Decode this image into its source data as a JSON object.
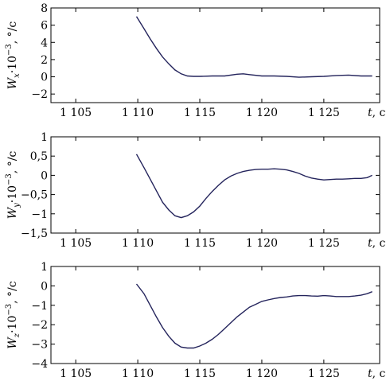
{
  "chart_data": [
    {
      "type": "line",
      "ylabel_parts": [
        "W",
        "x",
        "·10",
        "−3",
        ", °/c"
      ],
      "xlabel": "t, c",
      "xlim": [
        1103,
        1129.5
      ],
      "ylim": [
        -3,
        8
      ],
      "xticks": [
        1105,
        1110,
        1115,
        1120,
        1125
      ],
      "xtick_labels": [
        "1 105",
        "1 110",
        "1 115",
        "1 120",
        "1 125"
      ],
      "yticks": [
        8,
        6,
        4,
        2,
        0,
        -2
      ],
      "ytick_labels": [
        "8",
        "6",
        "4",
        "2",
        "0",
        "−2"
      ],
      "series": [
        {
          "x": [
            1109.9,
            1110.5,
            1111,
            1111.5,
            1112,
            1112.5,
            1113,
            1113.5,
            1114,
            1114.5,
            1115,
            1116,
            1117,
            1118,
            1118.5,
            1119,
            1120,
            1121,
            1122,
            1123,
            1124,
            1125,
            1126,
            1127,
            1128,
            1128.9
          ],
          "y": [
            7.0,
            5.6,
            4.4,
            3.3,
            2.3,
            1.5,
            0.8,
            0.35,
            0.1,
            0.05,
            0.05,
            0.1,
            0.1,
            0.3,
            0.35,
            0.25,
            0.1,
            0.1,
            0.05,
            -0.05,
            0.0,
            0.05,
            0.15,
            0.2,
            0.1,
            0.1
          ]
        }
      ]
    },
    {
      "type": "line",
      "ylabel_parts": [
        "W",
        "y",
        "·10",
        "−3",
        ", °/c"
      ],
      "xlabel": "t, c",
      "xlim": [
        1103,
        1129.5
      ],
      "ylim": [
        -1.5,
        1
      ],
      "xticks": [
        1105,
        1110,
        1115,
        1120,
        1125
      ],
      "xtick_labels": [
        "1 105",
        "1 110",
        "1 115",
        "1 120",
        "1 125"
      ],
      "yticks": [
        1,
        0.5,
        0,
        -0.5,
        -1,
        -1.5
      ],
      "ytick_labels": [
        "1",
        "0,5",
        "0",
        "−0,5",
        "−1",
        "−1,5"
      ],
      "series": [
        {
          "x": [
            1109.9,
            1110.5,
            1111,
            1111.5,
            1112,
            1112.5,
            1113,
            1113.5,
            1114,
            1114.5,
            1115,
            1115.5,
            1116,
            1116.5,
            1117,
            1117.5,
            1118,
            1118.5,
            1119,
            1119.5,
            1120,
            1120.5,
            1121,
            1121.5,
            1122,
            1122.5,
            1123,
            1123.5,
            1124,
            1124.5,
            1125,
            1125.5,
            1126,
            1126.5,
            1127,
            1127.5,
            1128,
            1128.5,
            1128.9
          ],
          "y": [
            0.55,
            0.2,
            -0.1,
            -0.4,
            -0.7,
            -0.9,
            -1.05,
            -1.1,
            -1.05,
            -0.95,
            -0.8,
            -0.6,
            -0.42,
            -0.26,
            -0.12,
            -0.02,
            0.05,
            0.1,
            0.13,
            0.15,
            0.16,
            0.16,
            0.17,
            0.16,
            0.14,
            0.1,
            0.05,
            -0.02,
            -0.07,
            -0.1,
            -0.12,
            -0.11,
            -0.1,
            -0.1,
            -0.09,
            -0.08,
            -0.08,
            -0.06,
            0.0
          ]
        }
      ]
    },
    {
      "type": "line",
      "ylabel_parts": [
        "W",
        "z",
        "·10",
        "−3",
        ", °/c"
      ],
      "xlabel": "t, c",
      "xlim": [
        1103,
        1129.5
      ],
      "ylim": [
        -4,
        1
      ],
      "xticks": [
        1105,
        1110,
        1115,
        1120,
        1125
      ],
      "xtick_labels": [
        "1 105",
        "1 110",
        "1 115",
        "1 120",
        "1 125"
      ],
      "yticks": [
        1,
        0,
        -1,
        -2,
        -3,
        -4
      ],
      "ytick_labels": [
        "1",
        "0",
        "−1",
        "−2",
        "−3",
        "−4"
      ],
      "series": [
        {
          "x": [
            1109.9,
            1110.5,
            1111,
            1111.5,
            1112,
            1112.5,
            1113,
            1113.5,
            1114,
            1114.5,
            1115,
            1115.5,
            1116,
            1116.5,
            1117,
            1117.5,
            1118,
            1118.5,
            1119,
            1119.5,
            1120,
            1120.5,
            1121,
            1121.5,
            1122,
            1122.5,
            1123,
            1123.5,
            1124,
            1124.5,
            1125,
            1125.5,
            1126,
            1126.5,
            1127,
            1127.5,
            1128,
            1128.5,
            1128.9
          ],
          "y": [
            0.1,
            -0.4,
            -1.0,
            -1.6,
            -2.15,
            -2.6,
            -2.95,
            -3.15,
            -3.2,
            -3.2,
            -3.1,
            -2.95,
            -2.75,
            -2.5,
            -2.2,
            -1.9,
            -1.6,
            -1.35,
            -1.1,
            -0.95,
            -0.8,
            -0.72,
            -0.65,
            -0.6,
            -0.57,
            -0.52,
            -0.5,
            -0.5,
            -0.52,
            -0.53,
            -0.5,
            -0.52,
            -0.55,
            -0.55,
            -0.55,
            -0.52,
            -0.48,
            -0.4,
            -0.3
          ]
        }
      ]
    }
  ]
}
